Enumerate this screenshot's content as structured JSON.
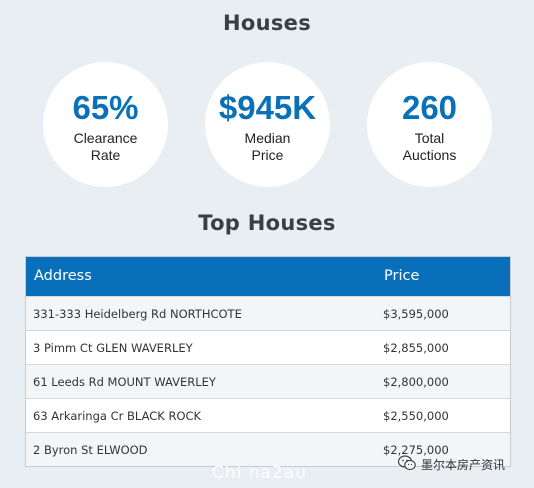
{
  "header": {
    "title": "Houses"
  },
  "stats": [
    {
      "value": "65%",
      "label_line1": "Clearance",
      "label_line2": "Rate"
    },
    {
      "value": "$945K",
      "label_line1": "Median",
      "label_line2": "Price"
    },
    {
      "value": "260",
      "label_line1": "Total",
      "label_line2": "Auctions"
    }
  ],
  "top_houses": {
    "title": "Top Houses",
    "columns": [
      "Address",
      "Price"
    ],
    "rows": [
      {
        "address": "331-333 Heidelberg Rd NORTHCOTE",
        "price": "$3,595,000"
      },
      {
        "address": "3 Pimm Ct GLEN WAVERLEY",
        "price": "$2,855,000"
      },
      {
        "address": "61 Leeds Rd MOUNT WAVERLEY",
        "price": "$2,800,000"
      },
      {
        "address": "63 Arkaringa Cr BLACK ROCK",
        "price": "$2,550,000"
      },
      {
        "address": "2 Byron St ELWOOD",
        "price": "$2,275,000"
      }
    ]
  },
  "watermark": {
    "text": "Chi na2au"
  },
  "wechat": {
    "account": "墨尔本房产资讯",
    "icon": "wechat-icon"
  },
  "colors": {
    "accent": "#0a71b9",
    "header_bg": "#0a6fba",
    "page_bg": "#e9eef3"
  }
}
